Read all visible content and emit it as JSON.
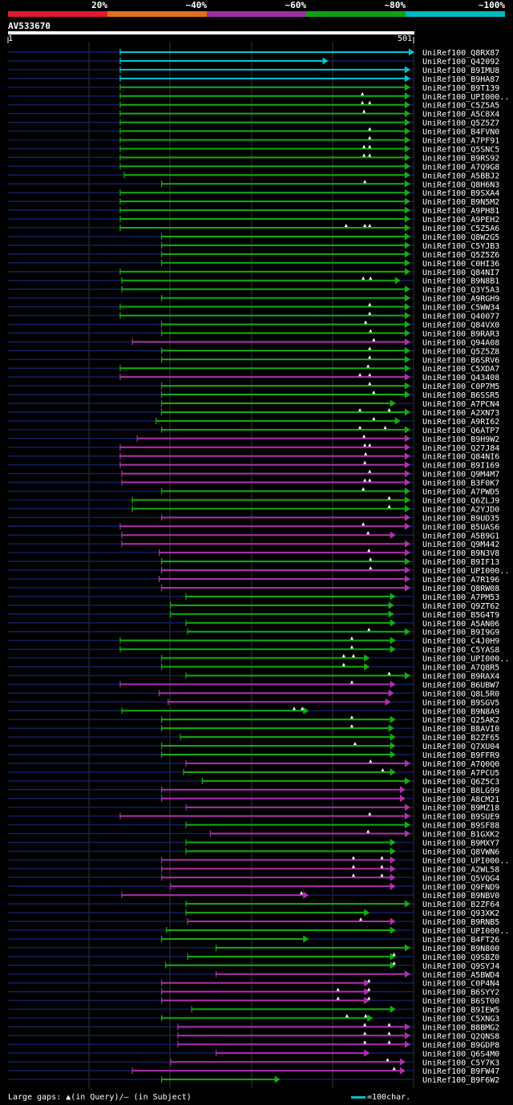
{
  "legend": {
    "labels": [
      "20%",
      "~40%",
      "~60%",
      "~80%",
      "~100%"
    ],
    "colors": [
      "#e01830",
      "#e07020",
      "#a030a0",
      "#10a010",
      "#00b8c0"
    ]
  },
  "query": {
    "id": "AV533670",
    "start": "1",
    "end": "501",
    "length": 501
  },
  "footer": {
    "gaps_text": "Large gaps: ▲(in Query)/— (in Subject)",
    "scale_text": "=100char."
  },
  "chart_data": {
    "type": "alignment-overview",
    "query_length": 501,
    "hits": [
      {
        "id": "UniRef100_Q8RX87",
        "start": 139,
        "end": 501,
        "color": "cyan",
        "gaps": []
      },
      {
        "id": "UniRef100_Q42092",
        "start": 139,
        "end": 395,
        "color": "cyan",
        "gaps": []
      },
      {
        "id": "UniRef100_B9IMU8",
        "start": 139,
        "end": 496,
        "color": "cyan",
        "gaps": []
      },
      {
        "id": "UniRef100_B9HA87",
        "start": 139,
        "end": 496,
        "color": "cyan",
        "gaps": []
      },
      {
        "id": "UniRef100_B9T139",
        "start": 139,
        "end": 496,
        "color": "green",
        "gaps": []
      },
      {
        "id": "UniRef100_UPI000..",
        "start": 139,
        "end": 496,
        "color": "green",
        "gaps": [
          437
        ]
      },
      {
        "id": "UniRef100_C5Z5A5",
        "start": 139,
        "end": 496,
        "color": "green",
        "gaps": [
          437,
          446
        ]
      },
      {
        "id": "UniRef100_A5C8X4",
        "start": 139,
        "end": 496,
        "color": "green",
        "gaps": [
          439
        ]
      },
      {
        "id": "UniRef100_Q5Z5Z7",
        "start": 139,
        "end": 496,
        "color": "green",
        "gaps": []
      },
      {
        "id": "UniRef100_B4FVN0",
        "start": 139,
        "end": 496,
        "color": "green",
        "gaps": [
          446
        ]
      },
      {
        "id": "UniRef100_A7PF91",
        "start": 139,
        "end": 496,
        "color": "green",
        "gaps": [
          446
        ]
      },
      {
        "id": "UniRef100_Q5SNC5",
        "start": 139,
        "end": 496,
        "color": "green",
        "gaps": [
          439,
          446
        ]
      },
      {
        "id": "UniRef100_B9RS92",
        "start": 139,
        "end": 496,
        "color": "green",
        "gaps": [
          439,
          446
        ]
      },
      {
        "id": "UniRef100_A7Q9G8",
        "start": 139,
        "end": 496,
        "color": "green",
        "gaps": []
      },
      {
        "id": "UniRef100_A5BBJ2",
        "start": 144,
        "end": 496,
        "color": "green",
        "gaps": []
      },
      {
        "id": "UniRef100_Q8H6N3",
        "start": 190,
        "end": 496,
        "color": "green",
        "gaps": [
          440
        ]
      },
      {
        "id": "UniRef100_B9SXA4",
        "start": 139,
        "end": 496,
        "color": "green",
        "gaps": []
      },
      {
        "id": "UniRef100_B9N5M2",
        "start": 139,
        "end": 496,
        "color": "green",
        "gaps": []
      },
      {
        "id": "UniRef100_A9PH81",
        "start": 139,
        "end": 496,
        "color": "green",
        "gaps": []
      },
      {
        "id": "UniRef100_A9PEH2",
        "start": 139,
        "end": 496,
        "color": "green",
        "gaps": []
      },
      {
        "id": "UniRef100_C5Z5A6",
        "start": 139,
        "end": 496,
        "color": "green",
        "gaps": [
          417,
          440,
          446
        ]
      },
      {
        "id": "UniRef100_Q8W2G5",
        "start": 190,
        "end": 496,
        "color": "green",
        "gaps": []
      },
      {
        "id": "UniRef100_C5YJB3",
        "start": 190,
        "end": 496,
        "color": "green",
        "gaps": []
      },
      {
        "id": "UniRef100_Q5Z5Z6",
        "start": 190,
        "end": 496,
        "color": "green",
        "gaps": []
      },
      {
        "id": "UniRef100_C0HI36",
        "start": 190,
        "end": 496,
        "color": "green",
        "gaps": []
      },
      {
        "id": "UniRef100_Q84NI7",
        "start": 139,
        "end": 496,
        "color": "green",
        "gaps": []
      },
      {
        "id": "UniRef100_B9N8B1",
        "start": 141,
        "end": 484,
        "color": "green",
        "gaps": [
          438,
          447
        ]
      },
      {
        "id": "UniRef100_Q3Y5A3",
        "start": 141,
        "end": 496,
        "color": "green",
        "gaps": []
      },
      {
        "id": "UniRef100_A9RGH9",
        "start": 190,
        "end": 496,
        "color": "green",
        "gaps": []
      },
      {
        "id": "UniRef100_C5WW34",
        "start": 139,
        "end": 496,
        "color": "green",
        "gaps": [
          446
        ]
      },
      {
        "id": "UniRef100_Q40077",
        "start": 139,
        "end": 496,
        "color": "green",
        "gaps": [
          446
        ]
      },
      {
        "id": "UniRef100_Q84VX0",
        "start": 190,
        "end": 496,
        "color": "green",
        "gaps": [
          441
        ]
      },
      {
        "id": "UniRef100_B9RAR3",
        "start": 190,
        "end": 496,
        "color": "green",
        "gaps": [
          447
        ]
      },
      {
        "id": "UniRef100_Q94A08",
        "start": 154,
        "end": 496,
        "color": "magenta",
        "gaps": [
          451
        ]
      },
      {
        "id": "UniRef100_Q5Z5Z8",
        "start": 190,
        "end": 496,
        "color": "green",
        "gaps": [
          446
        ]
      },
      {
        "id": "UniRef100_B6SRV6",
        "start": 190,
        "end": 496,
        "color": "green",
        "gaps": [
          446
        ]
      },
      {
        "id": "UniRef100_C5XDA7",
        "start": 139,
        "end": 496,
        "color": "green",
        "gaps": [
          444
        ]
      },
      {
        "id": "UniRef100_Q43408",
        "start": 139,
        "end": 496,
        "color": "magenta",
        "gaps": [
          434,
          446
        ]
      },
      {
        "id": "UniRef100_C0P7M5",
        "start": 190,
        "end": 496,
        "color": "green",
        "gaps": [
          446
        ]
      },
      {
        "id": "UniRef100_B6SSR5",
        "start": 190,
        "end": 496,
        "color": "green",
        "gaps": [
          451
        ]
      },
      {
        "id": "UniRef100_A7PCN4",
        "start": 190,
        "end": 478,
        "color": "green",
        "gaps": []
      },
      {
        "id": "UniRef100_A2XN73",
        "start": 190,
        "end": 496,
        "color": "green",
        "gaps": [
          434,
          470
        ]
      },
      {
        "id": "UniRef100_A9RI62",
        "start": 183,
        "end": 484,
        "color": "green",
        "gaps": [
          451
        ]
      },
      {
        "id": "UniRef100_Q6ATP7",
        "start": 190,
        "end": 496,
        "color": "green",
        "gaps": [
          434,
          465
        ]
      },
      {
        "id": "UniRef100_B9H9W2",
        "start": 160,
        "end": 496,
        "color": "magenta",
        "gaps": [
          439
        ]
      },
      {
        "id": "UniRef100_Q27J84",
        "start": 139,
        "end": 496,
        "color": "magenta",
        "gaps": [
          440,
          446
        ]
      },
      {
        "id": "UniRef100_Q84NI6",
        "start": 139,
        "end": 496,
        "color": "magenta",
        "gaps": [
          441
        ]
      },
      {
        "id": "UniRef100_B9I169",
        "start": 139,
        "end": 496,
        "color": "magenta",
        "gaps": [
          440
        ]
      },
      {
        "id": "UniRef100_Q9M4M7",
        "start": 141,
        "end": 496,
        "color": "magenta",
        "gaps": [
          446
        ]
      },
      {
        "id": "UniRef100_B3F0K7",
        "start": 141,
        "end": 496,
        "color": "magenta",
        "gaps": [
          440,
          446
        ]
      },
      {
        "id": "UniRef100_A7PWD5",
        "start": 190,
        "end": 496,
        "color": "green",
        "gaps": [
          438
        ]
      },
      {
        "id": "UniRef100_Q6ZLJ9",
        "start": 154,
        "end": 496,
        "color": "green",
        "gaps": [
          470
        ]
      },
      {
        "id": "UniRef100_A2YJD0",
        "start": 154,
        "end": 496,
        "color": "green",
        "gaps": [
          470
        ]
      },
      {
        "id": "UniRef100_B9UD35",
        "start": 190,
        "end": 496,
        "color": "magenta",
        "gaps": []
      },
      {
        "id": "UniRef100_B5UAS6",
        "start": 139,
        "end": 496,
        "color": "magenta",
        "gaps": [
          438
        ]
      },
      {
        "id": "UniRef100_A5B9G1",
        "start": 141,
        "end": 478,
        "color": "magenta",
        "gaps": [
          444
        ]
      },
      {
        "id": "UniRef100_Q9M442",
        "start": 141,
        "end": 496,
        "color": "magenta",
        "gaps": []
      },
      {
        "id": "UniRef100_B9N3V8",
        "start": 187,
        "end": 496,
        "color": "magenta",
        "gaps": [
          445
        ]
      },
      {
        "id": "UniRef100_B9IF13",
        "start": 190,
        "end": 496,
        "color": "green",
        "gaps": [
          447
        ]
      },
      {
        "id": "UniRef100_UPI000..",
        "start": 190,
        "end": 496,
        "color": "magenta",
        "gaps": [
          447
        ]
      },
      {
        "id": "UniRef100_A7R196",
        "start": 187,
        "end": 496,
        "color": "magenta",
        "gaps": []
      },
      {
        "id": "UniRef100_Q8RW08",
        "start": 190,
        "end": 496,
        "color": "magenta",
        "gaps": []
      },
      {
        "id": "UniRef100_A7PM53",
        "start": 220,
        "end": 478,
        "color": "green",
        "gaps": []
      },
      {
        "id": "UniRef100_Q9ZT62",
        "start": 201,
        "end": 476,
        "color": "green",
        "gaps": []
      },
      {
        "id": "UniRef100_B5G4T9",
        "start": 201,
        "end": 476,
        "color": "green",
        "gaps": []
      },
      {
        "id": "UniRef100_A5AN06",
        "start": 220,
        "end": 478,
        "color": "green",
        "gaps": []
      },
      {
        "id": "UniRef100_B9I9G9",
        "start": 222,
        "end": 496,
        "color": "green",
        "gaps": [
          445
        ]
      },
      {
        "id": "UniRef100_C4J0H9",
        "start": 139,
        "end": 478,
        "color": "green",
        "gaps": [
          424
        ]
      },
      {
        "id": "UniRef100_C5YAS8",
        "start": 139,
        "end": 478,
        "color": "green",
        "gaps": [
          424
        ]
      },
      {
        "id": "UniRef100_UPI000..",
        "start": 190,
        "end": 446,
        "color": "green",
        "gaps": [
          414,
          426
        ]
      },
      {
        "id": "UniRef100_A7Q8R5",
        "start": 190,
        "end": 446,
        "color": "green",
        "gaps": [
          414
        ]
      },
      {
        "id": "UniRef100_B9RAX4",
        "start": 220,
        "end": 496,
        "color": "green",
        "gaps": [
          470
        ]
      },
      {
        "id": "UniRef100_B6UBW7",
        "start": 139,
        "end": 478,
        "color": "magenta",
        "gaps": [
          424
        ]
      },
      {
        "id": "UniRef100_Q8L5R0",
        "start": 187,
        "end": 476,
        "color": "magenta",
        "gaps": []
      },
      {
        "id": "UniRef100_B9SGV5",
        "start": 198,
        "end": 472,
        "color": "magenta",
        "gaps": []
      },
      {
        "id": "UniRef100_B9N8A9",
        "start": 141,
        "end": 371,
        "color": "green",
        "gaps": [
          353,
          363
        ]
      },
      {
        "id": "UniRef100_Q25AK2",
        "start": 190,
        "end": 478,
        "color": "green",
        "gaps": [
          424
        ]
      },
      {
        "id": "UniRef100_B8AVI0",
        "start": 190,
        "end": 476,
        "color": "green",
        "gaps": [
          424
        ]
      },
      {
        "id": "UniRef100_B2ZF65",
        "start": 213,
        "end": 478,
        "color": "green",
        "gaps": []
      },
      {
        "id": "UniRef100_Q7XU04",
        "start": 190,
        "end": 478,
        "color": "green",
        "gaps": [
          428
        ]
      },
      {
        "id": "UniRef100_B9FFR9",
        "start": 190,
        "end": 478,
        "color": "green",
        "gaps": []
      },
      {
        "id": "UniRef100_A7Q0Q0",
        "start": 220,
        "end": 496,
        "color": "magenta",
        "gaps": [
          447
        ]
      },
      {
        "id": "UniRef100_A7PCU5",
        "start": 217,
        "end": 478,
        "color": "green",
        "gaps": [
          462
        ]
      },
      {
        "id": "UniRef100_Q6Z5C3",
        "start": 240,
        "end": 496,
        "color": "green",
        "gaps": []
      },
      {
        "id": "UniRef100_B8LG99",
        "start": 190,
        "end": 490,
        "color": "magenta",
        "gaps": []
      },
      {
        "id": "UniRef100_A8CM21",
        "start": 190,
        "end": 490,
        "color": "magenta",
        "gaps": []
      },
      {
        "id": "UniRef100_B9MZ18",
        "start": 220,
        "end": 496,
        "color": "magenta",
        "gaps": []
      },
      {
        "id": "UniRef100_B9SUE9",
        "start": 139,
        "end": 496,
        "color": "magenta",
        "gaps": [
          446
        ]
      },
      {
        "id": "UniRef100_B9SF88",
        "start": 220,
        "end": 496,
        "color": "green",
        "gaps": []
      },
      {
        "id": "UniRef100_B1GXK2",
        "start": 250,
        "end": 496,
        "color": "magenta",
        "gaps": [
          444
        ]
      },
      {
        "id": "UniRef100_B9MXY7",
        "start": 220,
        "end": 478,
        "color": "green",
        "gaps": []
      },
      {
        "id": "UniRef100_Q8VWN6",
        "start": 220,
        "end": 478,
        "color": "green",
        "gaps": []
      },
      {
        "id": "UniRef100_UPI000..",
        "start": 190,
        "end": 478,
        "color": "magenta",
        "gaps": [
          426,
          461
        ]
      },
      {
        "id": "UniRef100_A2WL58",
        "start": 190,
        "end": 478,
        "color": "magenta",
        "gaps": [
          426,
          461
        ]
      },
      {
        "id": "UniRef100_Q5VQG4",
        "start": 190,
        "end": 478,
        "color": "magenta",
        "gaps": [
          426,
          461
        ]
      },
      {
        "id": "UniRef100_Q9FND9",
        "start": 201,
        "end": 478,
        "color": "magenta",
        "gaps": []
      },
      {
        "id": "UniRef100_B9NBV0",
        "start": 141,
        "end": 371,
        "color": "magenta",
        "gaps": [
          362
        ]
      },
      {
        "id": "UniRef100_B2ZF64",
        "start": 220,
        "end": 496,
        "color": "green",
        "gaps": []
      },
      {
        "id": "UniRef100_Q93XK2",
        "start": 220,
        "end": 446,
        "color": "green",
        "gaps": []
      },
      {
        "id": "UniRef100_B9RNB5",
        "start": 222,
        "end": 478,
        "color": "magenta",
        "gaps": [
          435
        ]
      },
      {
        "id": "UniRef100_UPI000..",
        "start": 196,
        "end": 478,
        "color": "green",
        "gaps": []
      },
      {
        "id": "UniRef100_B4FT26",
        "start": 190,
        "end": 371,
        "color": "green",
        "gaps": []
      },
      {
        "id": "UniRef100_B9N800",
        "start": 257,
        "end": 496,
        "color": "green",
        "gaps": []
      },
      {
        "id": "UniRef100_Q9SBZ0",
        "start": 222,
        "end": 478,
        "color": "green",
        "gaps": [
          476
        ]
      },
      {
        "id": "UniRef100_Q9SYJ4",
        "start": 195,
        "end": 478,
        "color": "green",
        "gaps": [
          476
        ]
      },
      {
        "id": "UniRef100_A5BWD4",
        "start": 257,
        "end": 496,
        "color": "magenta",
        "gaps": []
      },
      {
        "id": "UniRef100_C0P4N4",
        "start": 190,
        "end": 446,
        "color": "magenta",
        "gaps": [
          445
        ]
      },
      {
        "id": "UniRef100_B6SYY2",
        "start": 190,
        "end": 446,
        "color": "magenta",
        "gaps": [
          407,
          445
        ]
      },
      {
        "id": "UniRef100_B6ST00",
        "start": 190,
        "end": 446,
        "color": "magenta",
        "gaps": [
          407,
          445
        ]
      },
      {
        "id": "UniRef100_B9IEW5",
        "start": 227,
        "end": 478,
        "color": "green",
        "gaps": []
      },
      {
        "id": "UniRef100_C5XNG3",
        "start": 190,
        "end": 450,
        "color": "green",
        "gaps": [
          418,
          441
        ]
      },
      {
        "id": "UniRef100_B8BMG2",
        "start": 210,
        "end": 496,
        "color": "magenta",
        "gaps": [
          440,
          470
        ]
      },
      {
        "id": "UniRef100_Q2QNS8",
        "start": 210,
        "end": 496,
        "color": "magenta",
        "gaps": [
          440,
          470
        ]
      },
      {
        "id": "UniRef100_B9GDP8",
        "start": 210,
        "end": 496,
        "color": "magenta",
        "gaps": [
          440,
          470
        ]
      },
      {
        "id": "UniRef100_Q6S4M0",
        "start": 257,
        "end": 446,
        "color": "magenta",
        "gaps": []
      },
      {
        "id": "UniRef100_C5Y7K3",
        "start": 201,
        "end": 490,
        "color": "magenta",
        "gaps": [
          468
        ]
      },
      {
        "id": "UniRef100_B9FW47",
        "start": 154,
        "end": 490,
        "color": "magenta",
        "gaps": [
          476
        ]
      },
      {
        "id": "UniRef100_B9F6W2",
        "start": 190,
        "end": 336,
        "color": "green",
        "gaps": []
      }
    ]
  }
}
